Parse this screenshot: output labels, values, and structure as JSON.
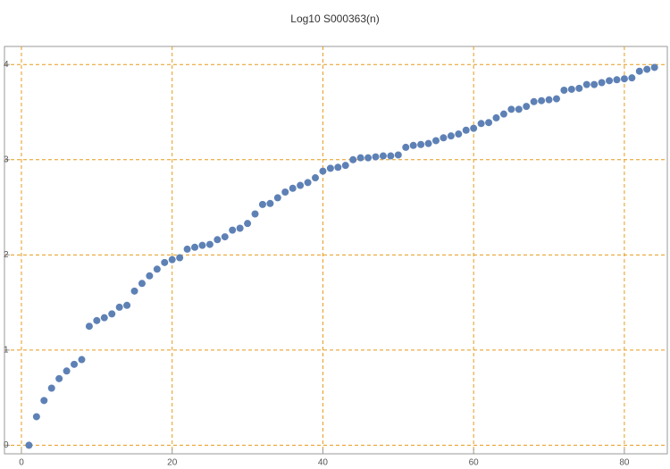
{
  "chart_data": {
    "type": "scatter",
    "title": "Log10 S000363(n)",
    "x": [
      1,
      2,
      3,
      4,
      5,
      6,
      7,
      8,
      9,
      10,
      11,
      12,
      13,
      14,
      15,
      16,
      17,
      18,
      19,
      20,
      21,
      22,
      23,
      24,
      25,
      26,
      27,
      28,
      29,
      30,
      31,
      32,
      33,
      34,
      35,
      36,
      37,
      38,
      39,
      40,
      41,
      42,
      43,
      44,
      45,
      46,
      47,
      48,
      49,
      50,
      51,
      52,
      53,
      54,
      55,
      56,
      57,
      58,
      59,
      60,
      61,
      62,
      63,
      64,
      65,
      66,
      67,
      68,
      69,
      70,
      71,
      72,
      73,
      74,
      75,
      76,
      77,
      78,
      79,
      80,
      81,
      82,
      83,
      84
    ],
    "series": [
      {
        "color": "#5e81b5",
        "values": [
          0,
          0.3,
          0.47,
          0.6,
          0.7,
          0.78,
          0.85,
          0.9,
          1.25,
          1.31,
          1.34,
          1.38,
          1.45,
          1.47,
          1.62,
          1.7,
          1.78,
          1.85,
          1.92,
          1.95,
          1.97,
          2.06,
          2.08,
          2.1,
          2.11,
          2.16,
          2.19,
          2.26,
          2.28,
          2.33,
          2.43,
          2.53,
          2.54,
          2.6,
          2.66,
          2.7,
          2.73,
          2.76,
          2.81,
          2.88,
          2.91,
          2.92,
          2.94,
          3.0,
          3.02,
          3.02,
          3.03,
          3.04,
          3.04,
          3.05,
          3.13,
          3.15,
          3.16,
          3.17,
          3.2,
          3.23,
          3.25,
          3.27,
          3.31,
          3.33,
          3.38,
          3.39,
          3.44,
          3.48,
          3.53,
          3.53,
          3.56,
          3.61,
          3.62,
          3.63,
          3.64,
          3.73,
          3.74,
          3.75,
          3.79,
          3.79,
          3.81,
          3.83,
          3.84,
          3.85,
          3.86,
          3.93,
          3.95,
          3.97
        ]
      }
    ],
    "xlim": [
      -2.25,
      85.7
    ],
    "ylim": [
      -0.09,
      4.19
    ],
    "xticks": [
      0,
      20,
      40,
      60,
      80
    ],
    "yticks": [
      0,
      1,
      2,
      3,
      4
    ],
    "grid": true,
    "grid_color": "#e69b1c"
  }
}
